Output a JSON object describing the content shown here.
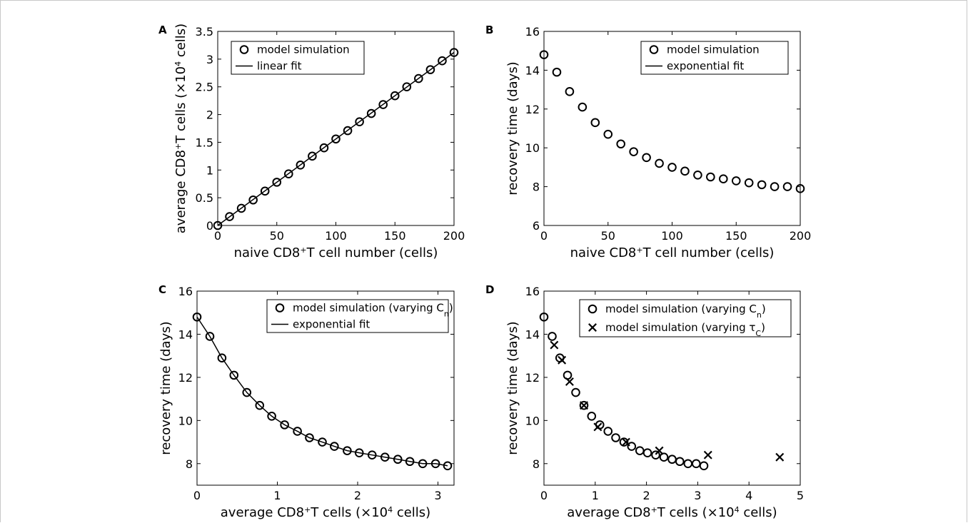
{
  "chart_data": [
    {
      "panel_label": "A",
      "type": "scatter",
      "xlabel": "naive CD8⁺T cell number (cells)",
      "ylabel": "average CD8⁺T cells (×10⁴ cells)",
      "xlim": [
        0,
        200
      ],
      "ylim": [
        0,
        3.5
      ],
      "xticks": [
        0,
        50,
        100,
        150,
        200
      ],
      "yticks": [
        0,
        0.5,
        1,
        1.5,
        2,
        2.5,
        3,
        3.5
      ],
      "xtick_labels": [
        "0",
        "50",
        "100",
        "150",
        "200"
      ],
      "ytick_labels": [
        "0",
        "0.5",
        "1",
        "1.5",
        "2",
        "2.5",
        "3",
        "3.5"
      ],
      "legend_position": "top-left",
      "grid": false,
      "series": [
        {
          "name": "model simulation",
          "marker": "circle",
          "x": [
            0,
            10,
            20,
            30,
            40,
            50,
            60,
            70,
            80,
            90,
            100,
            110,
            120,
            130,
            140,
            150,
            160,
            170,
            180,
            190,
            200
          ],
          "y": [
            0,
            0.16,
            0.31,
            0.46,
            0.62,
            0.78,
            0.93,
            1.09,
            1.25,
            1.4,
            1.56,
            1.71,
            1.87,
            2.02,
            2.18,
            2.34,
            2.5,
            2.65,
            2.81,
            2.97,
            3.12
          ]
        },
        {
          "name": "linear fit",
          "marker": "line",
          "x": [
            0,
            200
          ],
          "y": [
            0,
            3.12
          ]
        }
      ]
    },
    {
      "panel_label": "B",
      "type": "scatter",
      "xlabel": "naive CD8⁺T cell number (cells)",
      "ylabel": "recovery time (days)",
      "xlim": [
        0,
        200
      ],
      "ylim": [
        6,
        16
      ],
      "xticks": [
        0,
        50,
        100,
        150,
        200
      ],
      "yticks": [
        6,
        8,
        10,
        12,
        14,
        16
      ],
      "xtick_labels": [
        "0",
        "50",
        "100",
        "150",
        "200"
      ],
      "ytick_labels": [
        "6",
        "8",
        "10",
        "12",
        "14",
        "16"
      ],
      "legend_position": "top-right",
      "grid": false,
      "series": [
        {
          "name": "model simulation",
          "marker": "circle",
          "x": [
            0,
            10,
            20,
            30,
            40,
            50,
            60,
            70,
            80,
            90,
            100,
            110,
            120,
            130,
            140,
            150,
            160,
            170,
            180,
            190,
            200
          ],
          "y": [
            14.8,
            13.9,
            12.9,
            12.1,
            11.3,
            10.7,
            10.2,
            9.8,
            9.5,
            9.2,
            9.0,
            8.8,
            8.6,
            8.5,
            8.4,
            8.3,
            8.2,
            8.1,
            8.0,
            8.0,
            7.9
          ]
        },
        {
          "name": "exponential fit",
          "marker": "line",
          "x": [],
          "y": []
        }
      ]
    },
    {
      "panel_label": "C",
      "type": "scatter",
      "xlabel": "average CD8⁺T cells (×10⁴ cells)",
      "ylabel": "recovery time (days)",
      "xlim": [
        0,
        3.2
      ],
      "ylim": [
        7,
        16
      ],
      "xticks": [
        0,
        1,
        2,
        3
      ],
      "yticks": [
        8,
        10,
        12,
        14,
        16
      ],
      "xtick_labels": [
        "0",
        "1",
        "2",
        "3"
      ],
      "ytick_labels": [
        "8",
        "10",
        "12",
        "14",
        "16"
      ],
      "legend_position": "top-right",
      "grid": false,
      "series": [
        {
          "name": "model simulation (varying Cₙ)",
          "marker": "circle",
          "x": [
            0,
            0.16,
            0.31,
            0.46,
            0.62,
            0.78,
            0.93,
            1.09,
            1.25,
            1.4,
            1.56,
            1.71,
            1.87,
            2.02,
            2.18,
            2.34,
            2.5,
            2.65,
            2.81,
            2.97,
            3.12
          ],
          "y": [
            14.8,
            13.9,
            12.9,
            12.1,
            11.3,
            10.7,
            10.2,
            9.8,
            9.5,
            9.2,
            9.0,
            8.8,
            8.6,
            8.5,
            8.4,
            8.3,
            8.2,
            8.1,
            8.0,
            8.0,
            7.9
          ]
        },
        {
          "name": "exponential fit",
          "marker": "line",
          "x": [
            0,
            0.16,
            0.31,
            0.46,
            0.62,
            0.78,
            0.93,
            1.09,
            1.25,
            1.4,
            1.56,
            1.71,
            1.87,
            2.02,
            2.18,
            2.34,
            2.5,
            2.65,
            2.81,
            2.97,
            3.12
          ],
          "y": [
            14.8,
            13.9,
            12.9,
            12.1,
            11.3,
            10.7,
            10.2,
            9.8,
            9.5,
            9.2,
            9.0,
            8.8,
            8.6,
            8.5,
            8.4,
            8.3,
            8.2,
            8.1,
            8.0,
            8.0,
            7.9
          ]
        }
      ]
    },
    {
      "panel_label": "D",
      "type": "scatter",
      "xlabel": "average CD8⁺T cells (×10⁴ cells)",
      "ylabel": "recovery time (days)",
      "xlim": [
        0,
        5
      ],
      "ylim": [
        7,
        16
      ],
      "xticks": [
        0,
        1,
        2,
        3,
        4,
        5
      ],
      "yticks": [
        8,
        10,
        12,
        14,
        16
      ],
      "xtick_labels": [
        "0",
        "1",
        "2",
        "3",
        "4",
        "5"
      ],
      "ytick_labels": [
        "8",
        "10",
        "12",
        "14",
        "16"
      ],
      "legend_position": "top-right",
      "grid": false,
      "series": [
        {
          "name": "model simulation (varying Cₙ)",
          "marker": "circle",
          "x": [
            0,
            0.16,
            0.31,
            0.46,
            0.62,
            0.78,
            0.93,
            1.09,
            1.25,
            1.4,
            1.56,
            1.71,
            1.87,
            2.02,
            2.18,
            2.34,
            2.5,
            2.65,
            2.81,
            2.97,
            3.12
          ],
          "y": [
            14.8,
            13.9,
            12.9,
            12.1,
            11.3,
            10.7,
            10.2,
            9.8,
            9.5,
            9.2,
            9.0,
            8.8,
            8.6,
            8.5,
            8.4,
            8.3,
            8.2,
            8.1,
            8.0,
            8.0,
            7.9
          ]
        },
        {
          "name": "model simulation (varying τ_C)",
          "marker": "x",
          "x": [
            0.2,
            0.35,
            0.5,
            0.78,
            1.05,
            1.6,
            2.25,
            3.2,
            4.6
          ],
          "y": [
            13.5,
            12.8,
            11.8,
            10.7,
            9.7,
            9.0,
            8.6,
            8.4,
            8.3
          ]
        }
      ]
    }
  ]
}
